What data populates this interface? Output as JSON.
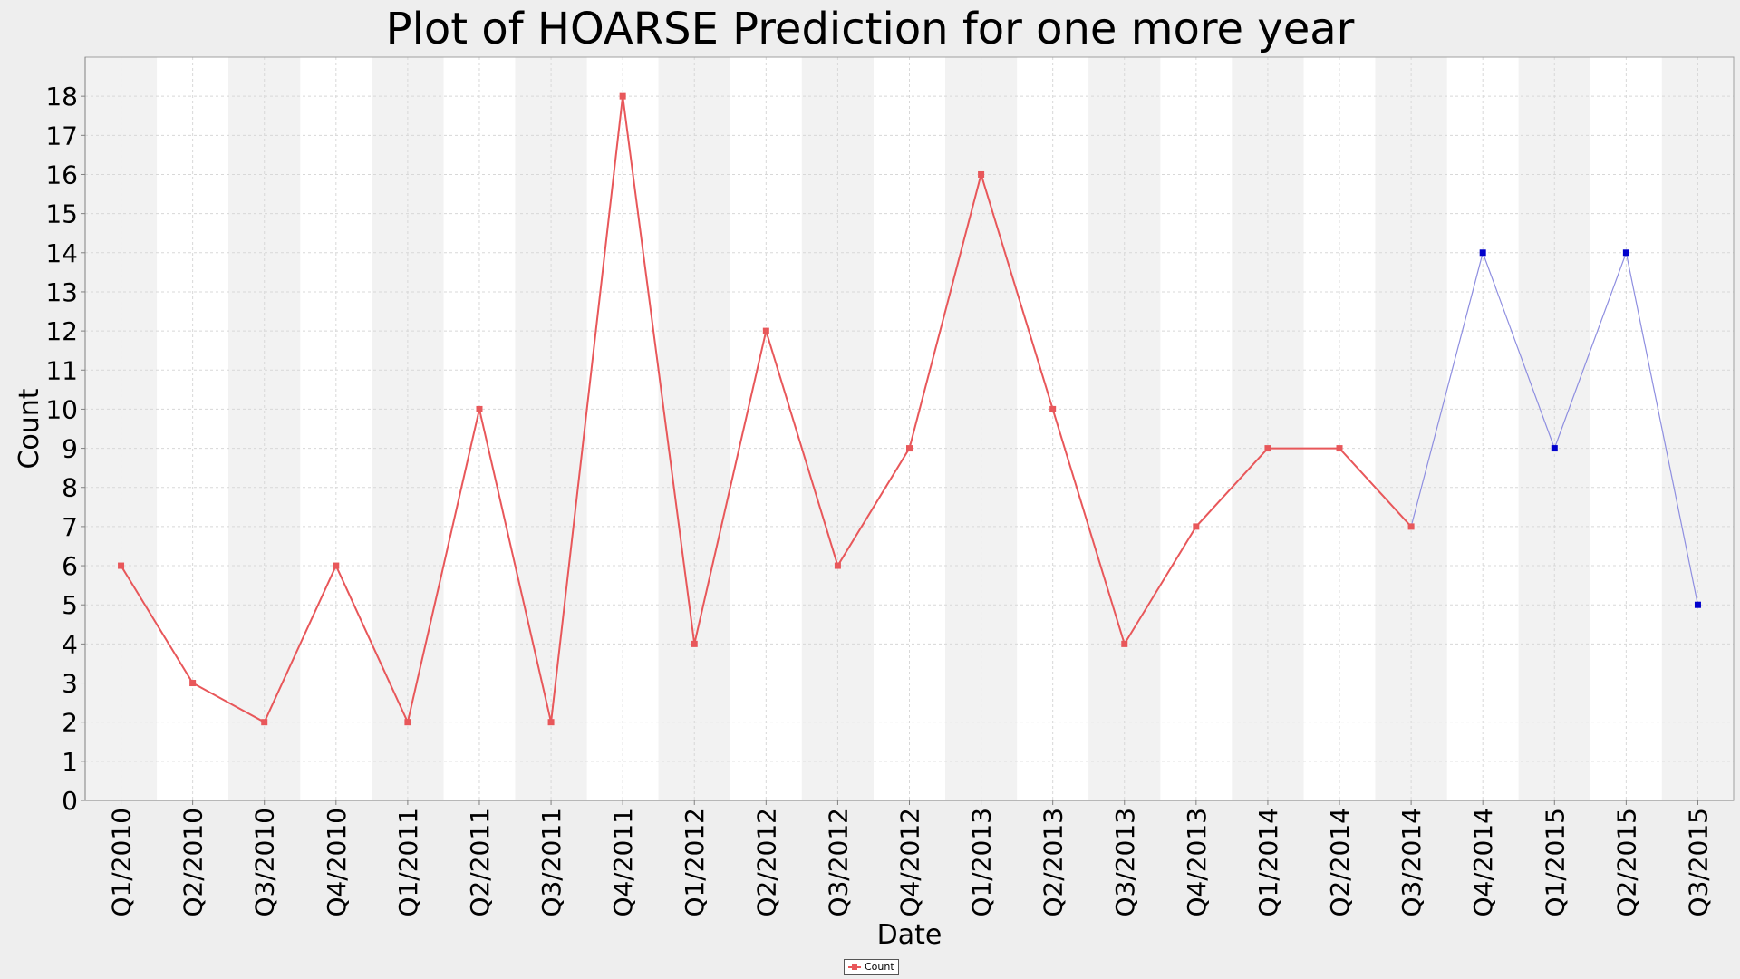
{
  "colors": {
    "actual": "#e8575a",
    "predicted": "#0000cc",
    "predicted_line": "#8e8ee0",
    "band": "#f2f2f2",
    "grid": "#d8d8d8"
  },
  "chart_data": {
    "type": "line",
    "title": "Plot of HOARSE Prediction for one more year",
    "xlabel": "Date",
    "ylabel": "Count",
    "ylim": [
      0,
      19
    ],
    "yticks": [
      0,
      1,
      2,
      3,
      4,
      5,
      6,
      7,
      8,
      9,
      10,
      11,
      12,
      13,
      14,
      15,
      16,
      17,
      18
    ],
    "grid": true,
    "legend_position": "bottom-center",
    "categories": [
      "Q1/2010",
      "Q2/2010",
      "Q3/2010",
      "Q4/2010",
      "Q1/2011",
      "Q2/2011",
      "Q3/2011",
      "Q4/2011",
      "Q1/2012",
      "Q2/2012",
      "Q3/2012",
      "Q4/2012",
      "Q1/2013",
      "Q2/2013",
      "Q3/2013",
      "Q4/2013",
      "Q1/2014",
      "Q2/2014",
      "Q3/2014",
      "Q4/2014",
      "Q1/2015",
      "Q2/2015",
      "Q3/2015"
    ],
    "series": [
      {
        "name": "Count",
        "values": [
          6,
          3,
          2,
          6,
          2,
          10,
          2,
          18,
          4,
          12,
          6,
          9,
          16,
          10,
          4,
          7,
          9,
          9,
          7,
          null,
          null,
          null,
          null
        ]
      },
      {
        "values": [
          null,
          null,
          null,
          null,
          null,
          null,
          null,
          null,
          null,
          null,
          null,
          null,
          null,
          null,
          null,
          null,
          null,
          null,
          7,
          14,
          9,
          14,
          5
        ]
      }
    ]
  }
}
